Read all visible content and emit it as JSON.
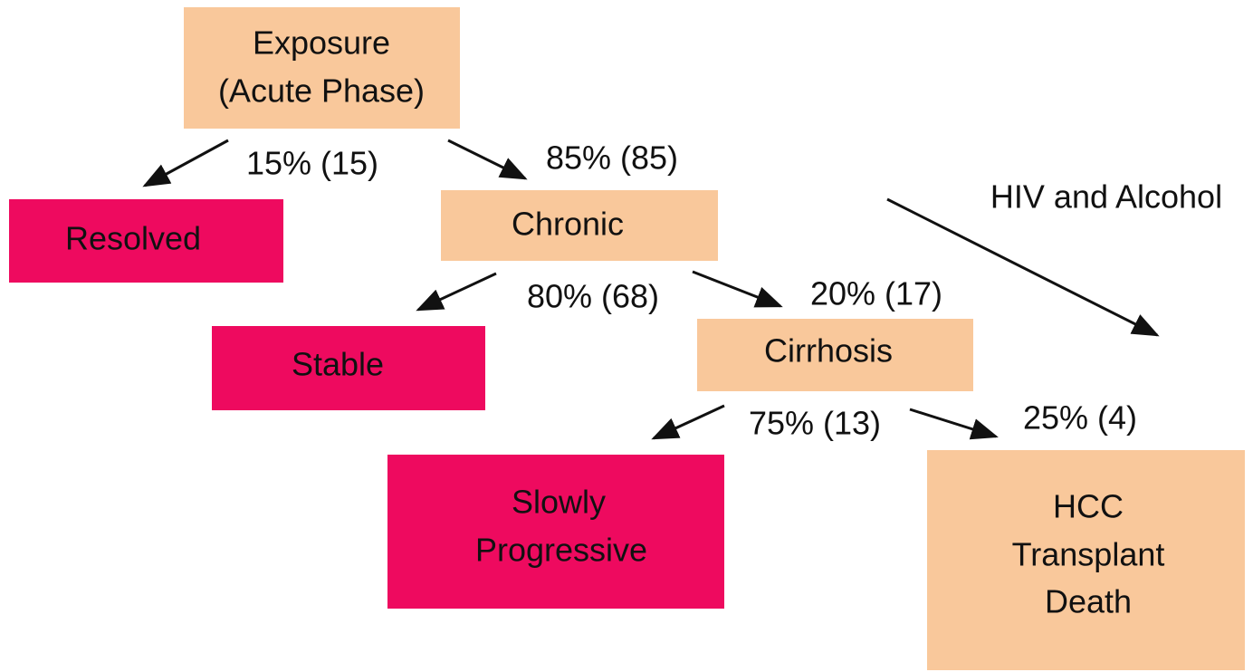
{
  "nodes": [
    {
      "lines": [
        "Exposure",
        "(Acute Phase)"
      ]
    },
    {
      "lines": [
        "Resolved"
      ]
    },
    {
      "lines": [
        "Chronic"
      ]
    },
    {
      "lines": [
        "Stable"
      ]
    },
    {
      "lines": [
        "Cirrhosis"
      ]
    },
    {
      "lines": [
        "Slowly",
        "Progressive"
      ]
    },
    {
      "lines": [
        "HCC",
        "Transplant",
        "Death"
      ]
    }
  ],
  "edges": [
    {
      "label": "15% (15)"
    },
    {
      "label": "85% (85)"
    },
    {
      "label": "80% (68)"
    },
    {
      "label": "20% (17)"
    },
    {
      "label": "HIV and Alcohol"
    },
    {
      "label": "75% (13)"
    },
    {
      "label": "25% (4)"
    }
  ]
}
